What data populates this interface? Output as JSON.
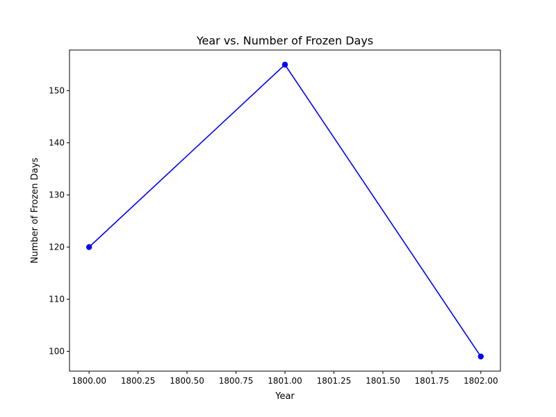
{
  "chart_data": {
    "type": "line",
    "title": "Year vs. Number of Frozen Days",
    "xlabel": "Year",
    "ylabel": "Number of Frozen Days",
    "x": [
      1800,
      1801,
      1802
    ],
    "series": [
      {
        "values": [
          120,
          155,
          99
        ],
        "color": "#0000ff",
        "marker": "circle"
      }
    ],
    "xlim": [
      1799.9,
      1802.1
    ],
    "ylim": [
      96.2,
      157.8
    ],
    "xticks": [
      1800.0,
      1800.25,
      1800.5,
      1800.75,
      1801.0,
      1801.25,
      1801.5,
      1801.75,
      1802.0
    ],
    "xtick_labels": [
      "1800.00",
      "1800.25",
      "1800.50",
      "1800.75",
      "1801.00",
      "1801.25",
      "1801.50",
      "1801.75",
      "1802.00"
    ],
    "yticks": [
      100,
      110,
      120,
      130,
      140,
      150
    ],
    "ytick_labels": [
      "100",
      "110",
      "120",
      "130",
      "140",
      "150"
    ],
    "grid": false,
    "legend": false
  }
}
